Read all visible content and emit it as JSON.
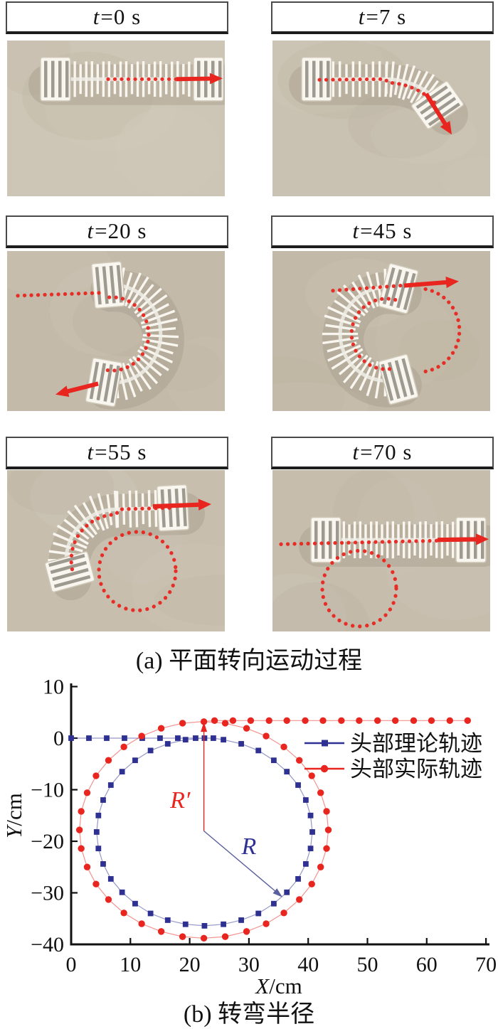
{
  "figure": {
    "panels": [
      {
        "id": "t0",
        "label_italic": "t",
        "label_rest": "=0 s",
        "pose": "straight-start"
      },
      {
        "id": "t7",
        "label_italic": "t",
        "label_rest": "=7 s",
        "pose": "bending-head-down"
      },
      {
        "id": "t20",
        "label_italic": "t",
        "label_rest": "=20 s",
        "pose": "c-shape-open-left"
      },
      {
        "id": "t45",
        "label_italic": "t",
        "label_rest": "=45 s",
        "pose": "c-shape-open-right"
      },
      {
        "id": "t55",
        "label_italic": "t",
        "label_rest": "=55 s",
        "pose": "unbending-hook"
      },
      {
        "id": "t70",
        "label_italic": "t",
        "label_rest": "=70 s",
        "pose": "straight-end"
      }
    ],
    "caption_a": "(a) 平面转向运动过程",
    "caption_b": "(b) 转弯半径"
  },
  "colors": {
    "accent_red": "#e8251f",
    "accent_blue": "#2e3192",
    "radius_line_blue": "#5a5f9e",
    "photo_backgrounds": [
      "#cdc5b5",
      "#c9c1b1",
      "#c3baa9",
      "#c2b9a8",
      "#c7beae",
      "#c6bdad"
    ],
    "robot_white": "#f8f6ef",
    "shadow_tan": "#a89e8d"
  },
  "chart_data": {
    "type": "line",
    "title": "",
    "xlabel_italic": "X",
    "xlabel_rest": "/cm",
    "ylabel_italic": "Y",
    "ylabel_rest": "/cm",
    "xlim": [
      0,
      70
    ],
    "ylim": [
      -40,
      10
    ],
    "xticks": [
      0,
      10,
      20,
      30,
      40,
      50,
      60,
      70
    ],
    "xtick_labels": [
      "0",
      "10",
      "20",
      "30",
      "40",
      "50",
      "60",
      "70"
    ],
    "yticks": [
      10,
      0,
      -10,
      -20,
      -30,
      -40
    ],
    "ytick_labels": [
      "10",
      "0",
      "−10",
      "−20",
      "−30",
      "−40"
    ],
    "grid": false,
    "legend_position": "upper-right-inside",
    "series": [
      {
        "name": "头部理论轨迹",
        "color": "#2e3192",
        "marker": "square",
        "points": [
          [
            0,
            0
          ],
          [
            3,
            0
          ],
          [
            6,
            0
          ],
          [
            9,
            0
          ],
          [
            12,
            0
          ],
          [
            15,
            0
          ],
          [
            18,
            0
          ],
          [
            21,
            0
          ],
          [
            24,
            0
          ],
          [
            25.7,
            -0.3
          ],
          [
            28.7,
            -1.1
          ],
          [
            31.6,
            -2.4
          ],
          [
            34.2,
            -4.3
          ],
          [
            36.4,
            -6.5
          ],
          [
            38.3,
            -9.1
          ],
          [
            39.6,
            -12
          ],
          [
            40.4,
            -15
          ],
          [
            40.7,
            -18.2
          ],
          [
            40.4,
            -21.4
          ],
          [
            39.6,
            -24.4
          ],
          [
            38.3,
            -27.3
          ],
          [
            36.4,
            -29.9
          ],
          [
            34.2,
            -32.1
          ],
          [
            31.6,
            -34
          ],
          [
            28.7,
            -35.3
          ],
          [
            25.7,
            -36.1
          ],
          [
            22.5,
            -36.4
          ],
          [
            19.3,
            -36.1
          ],
          [
            16.3,
            -35.3
          ],
          [
            13.4,
            -34
          ],
          [
            10.8,
            -32.1
          ],
          [
            8.6,
            -29.9
          ],
          [
            6.7,
            -27.3
          ],
          [
            5.4,
            -24.4
          ],
          [
            4.6,
            -21.4
          ],
          [
            4.3,
            -18.2
          ],
          [
            4.6,
            -15
          ],
          [
            5.4,
            -12
          ],
          [
            6.7,
            -9.1
          ],
          [
            8.6,
            -6.5
          ],
          [
            10.8,
            -4.3
          ],
          [
            13.4,
            -2.4
          ],
          [
            16.3,
            -1.1
          ],
          [
            19.3,
            -0.3
          ],
          [
            22.5,
            0
          ]
        ]
      },
      {
        "name": "头部实际轨迹",
        "color": "#e8251f",
        "marker": "circle",
        "points": [
          [
            22.4,
            3.2
          ],
          [
            26,
            2.9
          ],
          [
            29.6,
            1.9
          ],
          [
            32.9,
            0.4
          ],
          [
            35.9,
            -1.7
          ],
          [
            38.5,
            -4.3
          ],
          [
            40.6,
            -7.3
          ],
          [
            42.1,
            -10.6
          ],
          [
            43.1,
            -14.2
          ],
          [
            43.4,
            -17.8
          ],
          [
            43.1,
            -21.4
          ],
          [
            42.1,
            -25
          ],
          [
            40.6,
            -28.3
          ],
          [
            38.5,
            -31.3
          ],
          [
            35.9,
            -33.9
          ],
          [
            32.9,
            -36
          ],
          [
            29.6,
            -37.5
          ],
          [
            26,
            -38.5
          ],
          [
            22.4,
            -38.8
          ],
          [
            18.8,
            -38.5
          ],
          [
            15.2,
            -37.5
          ],
          [
            11.9,
            -36
          ],
          [
            8.9,
            -33.9
          ],
          [
            6.3,
            -31.3
          ],
          [
            4.2,
            -28.3
          ],
          [
            2.7,
            -25
          ],
          [
            1.7,
            -21.4
          ],
          [
            1.4,
            -17.8
          ],
          [
            1.7,
            -14.2
          ],
          [
            2.7,
            -10.6
          ],
          [
            4.2,
            -7.3
          ],
          [
            6.3,
            -4.3
          ],
          [
            8.9,
            -1.7
          ],
          [
            11.9,
            0.4
          ],
          [
            15.2,
            1.9
          ],
          [
            18.8,
            2.9
          ],
          [
            24.2,
            3.4
          ],
          [
            27.3,
            3.4
          ],
          [
            30.3,
            3.4
          ],
          [
            33.4,
            3.4
          ],
          [
            36.4,
            3.4
          ],
          [
            39.5,
            3.4
          ],
          [
            42.5,
            3.4
          ],
          [
            45.6,
            3.4
          ],
          [
            48.6,
            3.4
          ],
          [
            51.7,
            3.4
          ],
          [
            54.7,
            3.4
          ],
          [
            57.8,
            3.4
          ],
          [
            60.8,
            3.4
          ],
          [
            63.9,
            3.4
          ],
          [
            66.9,
            3.4
          ]
        ]
      }
    ],
    "annotations": [
      {
        "text": "R′",
        "color": "#e8251f",
        "line_from": [
          22.4,
          -18
        ],
        "line_to": [
          22.4,
          2.6
        ],
        "label_at": [
          18.4,
          -13.5
        ],
        "arrow": true
      },
      {
        "text": "R",
        "color": "#2e3192",
        "line_color": "#5a5f9e",
        "line_from": [
          22.4,
          -18
        ],
        "line_to": [
          35.3,
          -30.5
        ],
        "label_at": [
          30,
          -22.5
        ],
        "arrow": true
      }
    ]
  }
}
